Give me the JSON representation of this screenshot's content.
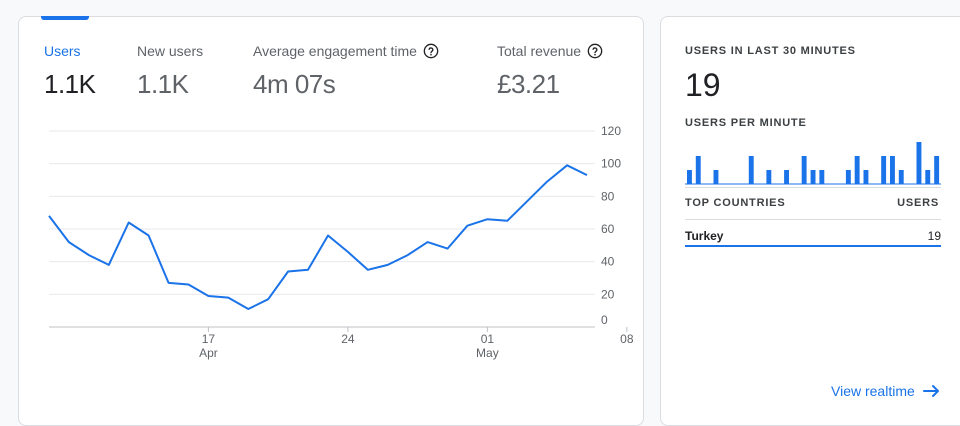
{
  "metrics": [
    {
      "label": "Users",
      "value": "1.1K",
      "active": true,
      "help": false
    },
    {
      "label": "New users",
      "value": "1.1K",
      "active": false,
      "help": false
    },
    {
      "label": "Average engagement time",
      "value": "4m 07s",
      "active": false,
      "help": true
    },
    {
      "label": "Total revenue",
      "value": "£3.21",
      "active": false,
      "help": true
    }
  ],
  "chart_data": {
    "type": "line",
    "x_tick_labels": [
      {
        "day": "17",
        "month": "Apr",
        "index": 8
      },
      {
        "day": "24",
        "month": "",
        "index": 15
      },
      {
        "day": "01",
        "month": "May",
        "index": 22
      },
      {
        "day": "08",
        "month": "",
        "index": 29
      }
    ],
    "y_ticks": [
      0,
      20,
      40,
      60,
      80,
      100,
      120
    ],
    "ylim": [
      0,
      120
    ],
    "values": [
      68,
      52,
      44,
      38,
      64,
      56,
      27,
      26,
      19,
      18,
      11,
      17,
      34,
      35,
      56,
      46,
      35,
      38,
      44,
      52,
      48,
      62,
      66,
      65,
      77,
      89,
      99,
      93
    ],
    "series": [
      {
        "name": "Users",
        "color": "#1a73e8"
      }
    ],
    "grid": true
  },
  "realtime": {
    "title": "USERS IN LAST 30 MINUTES",
    "count": "19",
    "per_minute_title": "USERS PER MINUTE",
    "per_minute": [
      1,
      2,
      0,
      1,
      0,
      0,
      0,
      2,
      0,
      1,
      0,
      1,
      0,
      2,
      1,
      1,
      0,
      0,
      1,
      2,
      1,
      0,
      2,
      2,
      1,
      0,
      3,
      1,
      2
    ],
    "bar_color": "#1a73e8",
    "countries_header": "TOP COUNTRIES",
    "users_header": "USERS",
    "countries": [
      {
        "name": "Turkey",
        "users": "19"
      }
    ],
    "view_link": "View realtime"
  }
}
